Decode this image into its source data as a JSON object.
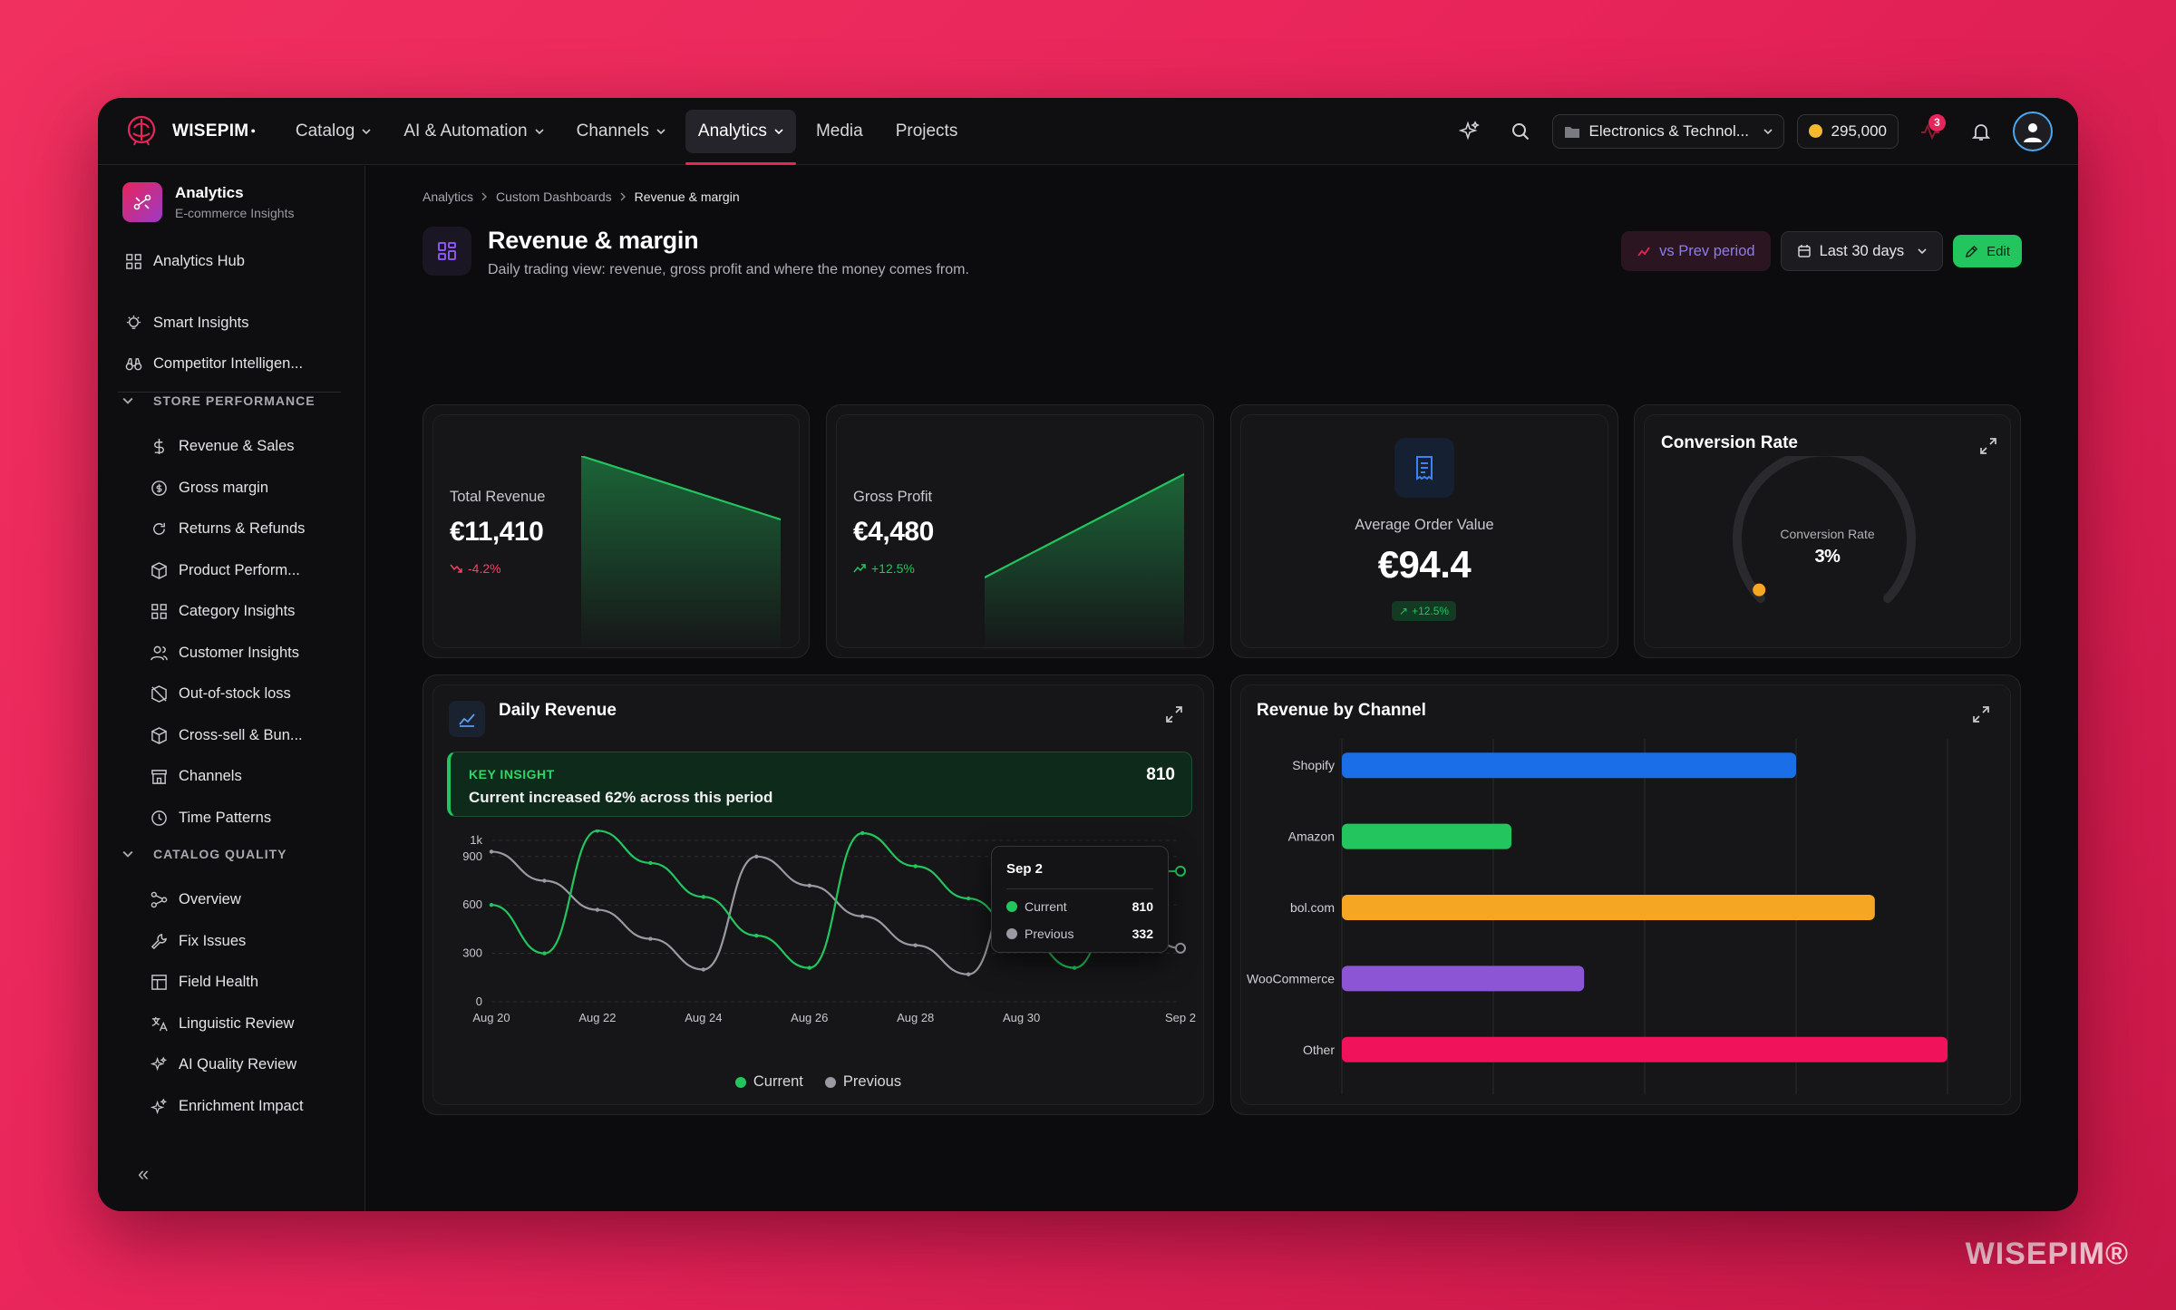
{
  "watermark": "WISEPIM®",
  "topbar": {
    "brand": "WISEPIM",
    "nav": [
      {
        "label": "Catalog",
        "dropdown": true
      },
      {
        "label": "AI & Automation",
        "dropdown": true
      },
      {
        "label": "Channels",
        "dropdown": true
      },
      {
        "label": "Analytics",
        "dropdown": true,
        "active": true
      },
      {
        "label": "Media",
        "dropdown": false
      },
      {
        "label": "Projects",
        "dropdown": false
      }
    ],
    "workspace": "Electronics & Technol...",
    "credits": "295,000",
    "notif_count": "3"
  },
  "sidebar": {
    "title": "Analytics",
    "subtitle": "E-commerce Insights",
    "hub": "Analytics Hub",
    "top_items": [
      "Smart Insights",
      "Competitor Intelligen..."
    ],
    "section1": "STORE PERFORMANCE",
    "store_items": [
      "Revenue & Sales",
      "Gross margin",
      "Returns & Refunds",
      "Product Perform...",
      "Category Insights",
      "Customer Insights",
      "Out-of-stock loss",
      "Cross-sell & Bun...",
      "Channels",
      "Time Patterns"
    ],
    "section2": "CATALOG QUALITY",
    "catalog_items": [
      "Overview",
      "Fix Issues",
      "Field Health",
      "Linguistic Review",
      "AI Quality Review",
      "Enrichment Impact"
    ],
    "collapse": "«"
  },
  "breadcrumb": [
    "Analytics",
    "Custom Dashboards",
    "Revenue & margin"
  ],
  "page": {
    "title": "Revenue & margin",
    "subtitle": "Daily trading view: revenue, gross profit and where the money comes from."
  },
  "actions": {
    "compare": "vs Prev period",
    "range": "Last 30 days",
    "edit": "Edit"
  },
  "kpis": {
    "revenue": {
      "label": "Total Revenue",
      "value": "€11,410",
      "delta": "-4.2%"
    },
    "profit": {
      "label": "Gross Profit",
      "value": "€4,480",
      "delta": "+12.5%"
    },
    "aov": {
      "label": "Average Order Value",
      "value": "€94.4",
      "delta": "+12.5%"
    },
    "conversion": {
      "title": "Conversion Rate",
      "label": "Conversion Rate",
      "value": "3%",
      "gauge_fraction": 0.03
    }
  },
  "colors": {
    "accent": "#e8245a",
    "green": "#22c55e",
    "red": "#ef4466",
    "orange": "#f59e0b"
  },
  "daily": {
    "title": "Daily Revenue",
    "insight_label": "KEY INSIGHT",
    "insight_text": "Current increased 62% across this period",
    "insight_value": "810",
    "tooltip": {
      "date": "Sep 2",
      "current_label": "Current",
      "current": "810",
      "previous_label": "Previous",
      "previous": "332"
    }
  },
  "channel": {
    "title": "Revenue by Channel"
  },
  "chart_data": [
    {
      "type": "line",
      "title": "Daily Revenue",
      "x": [
        "Aug 20",
        "Aug 21",
        "Aug 22",
        "Aug 23",
        "Aug 24",
        "Aug 25",
        "Aug 26",
        "Aug 27",
        "Aug 28",
        "Aug 29",
        "Aug 30",
        "Aug 31",
        "Sep 1",
        "Sep 2"
      ],
      "xticks": [
        "Aug 20",
        "Aug 22",
        "Aug 24",
        "Aug 26",
        "Aug 28",
        "Aug 30",
        "Sep 2"
      ],
      "yticks": [
        "0",
        "300",
        "600",
        "900",
        "1k"
      ],
      "ylim": [
        0,
        1000
      ],
      "series": [
        {
          "name": "Current",
          "color": "#22c55e",
          "values": [
            600,
            300,
            1070,
            860,
            650,
            410,
            210,
            1045,
            840,
            640,
            420,
            210,
            800,
            810
          ]
        },
        {
          "name": "Previous",
          "color": "#9a9aa2",
          "values": [
            930,
            750,
            570,
            390,
            200,
            900,
            720,
            530,
            350,
            170,
            880,
            700,
            520,
            332
          ]
        }
      ],
      "legend": "bottom"
    },
    {
      "type": "bar",
      "orientation": "horizontal",
      "title": "Revenue by Channel",
      "categories": [
        "Shopify",
        "Amazon",
        "bol.com",
        "WooCommerce",
        "Other"
      ],
      "values": [
        0.75,
        0.28,
        0.88,
        0.4,
        1.0
      ],
      "colors": [
        "#1a6fe8",
        "#22c55e",
        "#f5a623",
        "#8b55d6",
        "#f0125a"
      ],
      "grid": true
    }
  ]
}
